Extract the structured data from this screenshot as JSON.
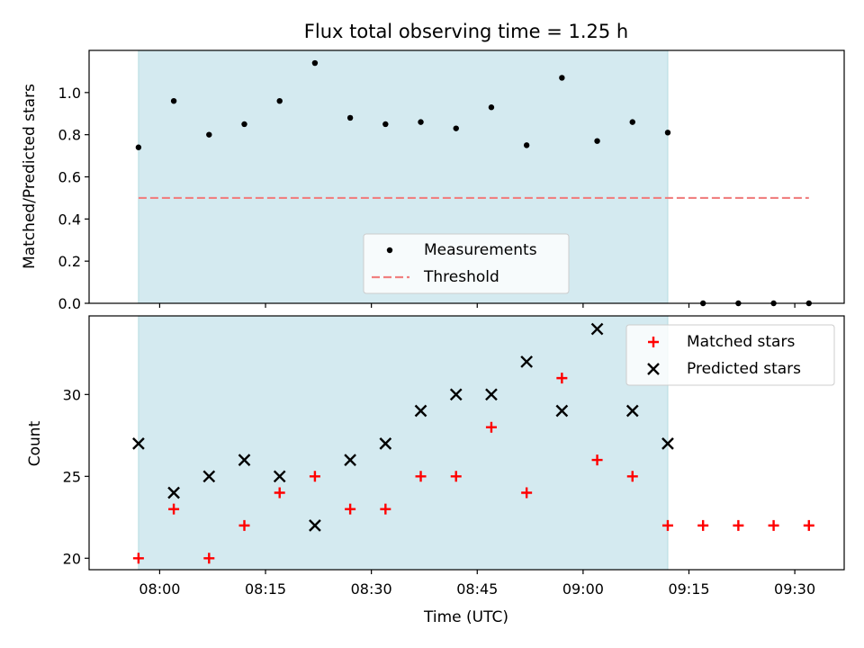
{
  "colors": {
    "shade": "#d4eaf0",
    "shade_edge": "#b5dde0",
    "measurement": "#000000",
    "threshold": "#f08080",
    "matched": "#ff0000",
    "predicted": "#000000"
  },
  "chart_data": [
    {
      "type": "scatter",
      "title": "Flux total observing time = 1.25 h",
      "xlabel": "",
      "ylabel": "Matched/Predicted stars",
      "xlim": [
        "07:50",
        "09:37"
      ],
      "ylim": [
        0,
        1.2
      ],
      "yticks": [
        0.0,
        0.2,
        0.4,
        0.6,
        0.8,
        1.0
      ],
      "ytick_labels": [
        "0.0",
        "0.2",
        "0.4",
        "0.6",
        "0.8",
        "1.0"
      ],
      "xticks": [
        "08:00",
        "08:15",
        "08:30",
        "08:45",
        "09:00",
        "09:15",
        "09:30"
      ],
      "grid": false,
      "shaded_range": [
        "07:57",
        "09:12"
      ],
      "legend_position": "lower center",
      "series": [
        {
          "name": "Measurements",
          "marker": "dot",
          "x": [
            "07:57",
            "08:02",
            "08:07",
            "08:12",
            "08:17",
            "08:22",
            "08:27",
            "08:32",
            "08:37",
            "08:42",
            "08:47",
            "08:52",
            "08:57",
            "09:02",
            "09:07",
            "09:12",
            "09:17",
            "09:22",
            "09:27",
            "09:32"
          ],
          "y": [
            0.74,
            0.96,
            0.8,
            0.85,
            0.96,
            1.14,
            0.88,
            0.85,
            0.86,
            0.83,
            0.93,
            0.75,
            1.07,
            0.77,
            0.86,
            0.81,
            0.0,
            0.0,
            0.0,
            0.0
          ]
        },
        {
          "name": "Threshold",
          "style": "dashed",
          "x": [
            "07:57",
            "09:32"
          ],
          "y": [
            0.5,
            0.5
          ]
        }
      ]
    },
    {
      "type": "scatter",
      "title": "",
      "xlabel": "Time (UTC)",
      "ylabel": "Count",
      "xlim": [
        "07:50",
        "09:37"
      ],
      "ylim": [
        19.3,
        34.8
      ],
      "yticks": [
        20,
        25,
        30
      ],
      "ytick_labels": [
        "20",
        "25",
        "30"
      ],
      "xticks": [
        "08:00",
        "08:15",
        "08:30",
        "08:45",
        "09:00",
        "09:15",
        "09:30"
      ],
      "xtick_labels": [
        "08:00",
        "08:15",
        "08:30",
        "08:45",
        "09:00",
        "09:15",
        "09:30"
      ],
      "grid": false,
      "shaded_range": [
        "07:57",
        "09:12"
      ],
      "legend_position": "upper right",
      "series": [
        {
          "name": "Matched stars",
          "marker": "plus",
          "x": [
            "07:57",
            "08:02",
            "08:07",
            "08:12",
            "08:17",
            "08:22",
            "08:27",
            "08:32",
            "08:37",
            "08:42",
            "08:47",
            "08:52",
            "08:57",
            "09:02",
            "09:07",
            "09:12",
            "09:17",
            "09:22",
            "09:27",
            "09:32"
          ],
          "y": [
            20,
            23,
            20,
            22,
            24,
            25,
            23,
            23,
            25,
            25,
            28,
            24,
            31,
            26,
            25,
            22,
            22,
            22,
            22,
            22
          ]
        },
        {
          "name": "Predicted stars",
          "marker": "x",
          "x": [
            "07:57",
            "08:02",
            "08:07",
            "08:12",
            "08:17",
            "08:22",
            "08:27",
            "08:32",
            "08:37",
            "08:42",
            "08:47",
            "08:52",
            "08:57",
            "09:02",
            "09:07",
            "09:12"
          ],
          "y": [
            27,
            24,
            25,
            26,
            25,
            22,
            26,
            27,
            29,
            30,
            30,
            32,
            29,
            34,
            29,
            27
          ]
        }
      ]
    }
  ]
}
